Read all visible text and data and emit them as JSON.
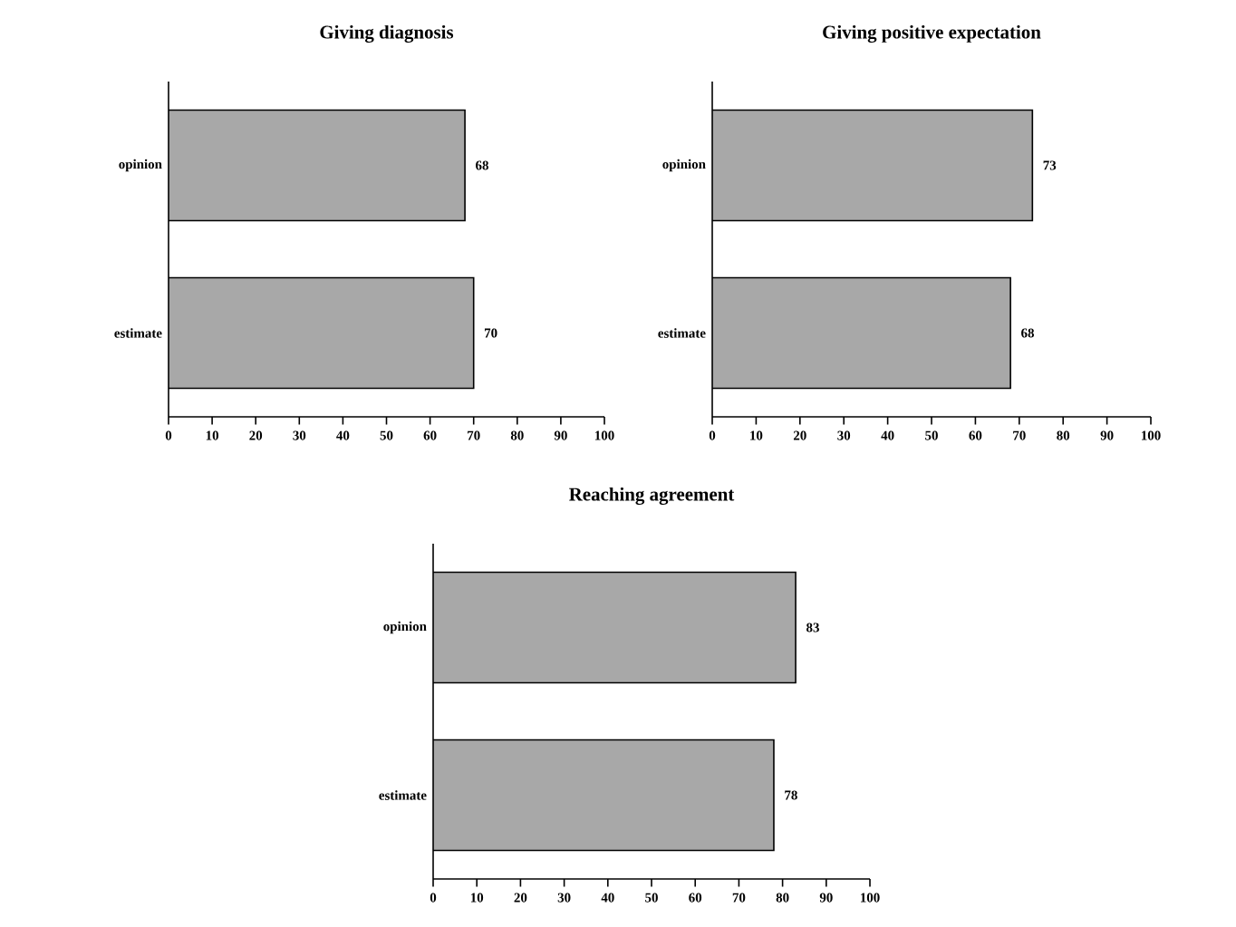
{
  "chart_data": [
    {
      "type": "bar",
      "orientation": "horizontal",
      "title": "Giving diagnosis",
      "categories": [
        "opinion",
        "estimate"
      ],
      "values": [
        68,
        70
      ],
      "color": "#a8a8a8",
      "xlim": [
        0,
        100
      ],
      "xticks": [
        0,
        10,
        20,
        30,
        40,
        50,
        60,
        70,
        80,
        90,
        100
      ],
      "data_labels": true
    },
    {
      "type": "bar",
      "orientation": "horizontal",
      "title": "Giving positive expectation",
      "categories": [
        "opinion",
        "estimate"
      ],
      "values": [
        73,
        68
      ],
      "color": "#a8a8a8",
      "xlim": [
        0,
        100
      ],
      "xticks": [
        0,
        10,
        20,
        30,
        40,
        50,
        60,
        70,
        80,
        90,
        100
      ],
      "data_labels": true
    },
    {
      "type": "bar",
      "orientation": "horizontal",
      "title": "Reaching agreement",
      "categories": [
        "opinion",
        "estimate"
      ],
      "values": [
        83,
        78
      ],
      "color": "#a8a8a8",
      "xlim": [
        0,
        100
      ],
      "xticks": [
        0,
        10,
        20,
        30,
        40,
        50,
        60,
        70,
        80,
        90,
        100
      ],
      "data_labels": true
    }
  ]
}
